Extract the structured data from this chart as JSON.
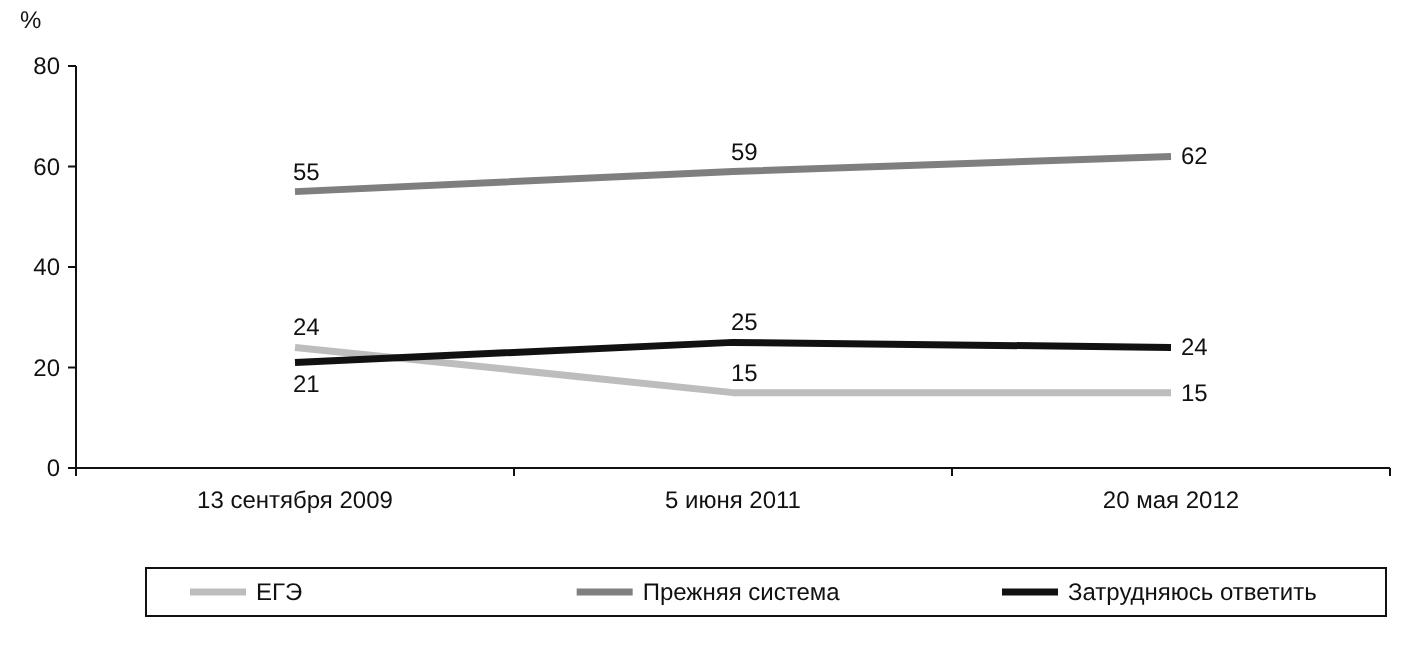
{
  "chart_data": {
    "type": "line",
    "ylabel": "%",
    "categories": [
      "13 сентября 2009",
      "5 июня 2011",
      "20 мая 2012"
    ],
    "series": [
      {
        "name": "ЕГЭ",
        "color": "#bdbdbd",
        "values": [
          24,
          15,
          15
        ]
      },
      {
        "name": "Прежняя система",
        "color": "#7f7f7f",
        "values": [
          55,
          59,
          62
        ]
      },
      {
        "name": "Затрудняюсь ответить",
        "color": "#111111",
        "values": [
          21,
          25,
          24
        ]
      }
    ],
    "ylim": [
      0,
      80
    ],
    "yticks": [
      0,
      20,
      40,
      60,
      80
    ],
    "grid": false,
    "legend": "bottom",
    "data_labels": true,
    "marker": "none",
    "line_style": "solid"
  }
}
